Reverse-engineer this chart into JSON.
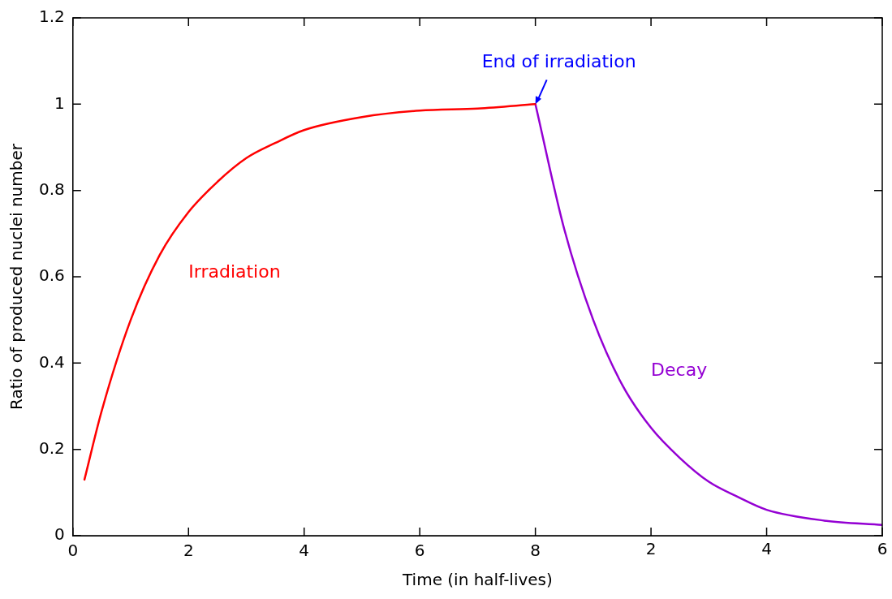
{
  "chart_data": {
    "type": "line",
    "xlabel": "Time (in half-lives)",
    "ylabel": "Ratio of produced nuclei number",
    "xlim": [
      0,
      14
    ],
    "xticks": [
      0,
      2,
      4,
      6,
      8
    ],
    "x2lim": [
      -8,
      6
    ],
    "x2ticks": [
      2,
      4,
      6
    ],
    "ylim": [
      0,
      1.2
    ],
    "yticks": [
      0,
      0.2,
      0.4,
      0.6,
      0.8,
      1,
      1.2
    ],
    "marker": "none",
    "line_style": "solid",
    "series": [
      {
        "name": "Irradiation",
        "color": "#ff0000",
        "x": [
          0.2,
          0.5,
          1,
          1.5,
          2,
          2.5,
          3,
          3.5,
          4,
          5,
          6,
          7,
          8
        ],
        "values": [
          0.13,
          0.29,
          0.5,
          0.65,
          0.75,
          0.82,
          0.875,
          0.91,
          0.94,
          0.97,
          0.985,
          0.99,
          1.0
        ]
      },
      {
        "name": "Decay",
        "color": "#9400d3",
        "axis": "x2",
        "x": [
          0,
          0.5,
          1,
          1.5,
          2,
          2.5,
          3,
          3.5,
          4,
          5,
          6
        ],
        "values": [
          1.0,
          0.71,
          0.5,
          0.35,
          0.25,
          0.18,
          0.125,
          0.09,
          0.06,
          0.035,
          0.025
        ]
      }
    ],
    "annotations": [
      {
        "text": "End of irradiation",
        "x": 8,
        "y": 1
      }
    ]
  }
}
